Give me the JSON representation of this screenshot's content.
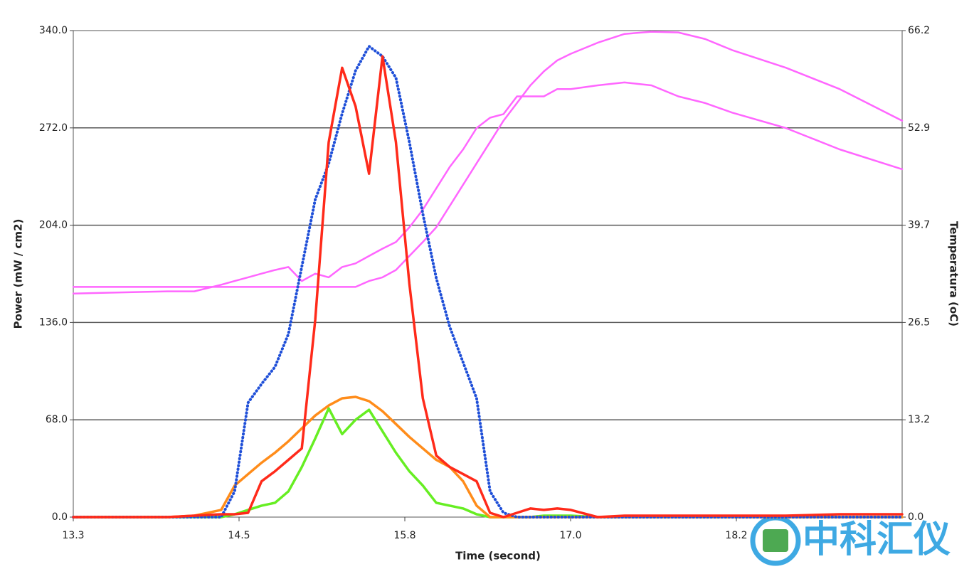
{
  "chart_data": {
    "type": "line",
    "xlabel": "Time (second)",
    "ylabel": "Power (mW / cm2)",
    "y2label": "Temperatura (oC)",
    "watermark": "中科汇仪",
    "x": [
      13.3,
      14.0,
      14.2,
      14.4,
      14.5,
      14.6,
      14.7,
      14.8,
      14.9,
      15.0,
      15.1,
      15.2,
      15.3,
      15.4,
      15.5,
      15.6,
      15.7,
      15.8,
      15.9,
      16.0,
      16.1,
      16.2,
      16.3,
      16.4,
      16.5,
      16.6,
      16.7,
      16.8,
      16.9,
      17.0,
      17.2,
      17.4,
      17.6,
      17.8,
      18.0,
      18.2,
      18.6,
      19.0,
      19.465
    ],
    "xlim": [
      13.3,
      19.465
    ],
    "xticks": [
      {
        "value": 13.3,
        "label": "13.3"
      },
      {
        "value": 14.533,
        "label": "14.5"
      },
      {
        "value": 15.766,
        "label": "15.8"
      },
      {
        "value": 16.999,
        "label": "17.0"
      },
      {
        "value": 18.232,
        "label": "18.2"
      }
    ],
    "ylim": [
      0,
      340
    ],
    "yticks": [
      {
        "value": 0,
        "label": "0.0"
      },
      {
        "value": 68,
        "label": "68.0"
      },
      {
        "value": 136,
        "label": "136.0"
      },
      {
        "value": 204,
        "label": "204.0"
      },
      {
        "value": 272,
        "label": "272.0"
      },
      {
        "value": 340,
        "label": "340.0"
      }
    ],
    "y2lim": [
      0,
      66.15
    ],
    "y2ticks": [
      {
        "value": 0,
        "label": "0.0"
      },
      {
        "value": 13.23,
        "label": "13.2"
      },
      {
        "value": 26.46,
        "label": "26.5"
      },
      {
        "value": 39.69,
        "label": "39.7"
      },
      {
        "value": 52.92,
        "label": "52.9"
      },
      {
        "value": 66.15,
        "label": "66.2"
      }
    ],
    "grid": true,
    "series": [
      {
        "color": "#ff66ff",
        "axis": "y2",
        "style": "pink",
        "values": [
          31.3,
          31.3,
          31.3,
          31.3,
          31.3,
          31.3,
          31.3,
          31.3,
          31.3,
          31.3,
          31.3,
          31.3,
          31.3,
          31.3,
          32.1,
          32.6,
          33.6,
          35.5,
          37.4,
          39.4,
          42.3,
          45.2,
          48.1,
          51.0,
          53.9,
          56.3,
          58.7,
          60.6,
          62.1,
          63.0,
          64.5,
          65.7,
          66.0,
          65.9,
          65.0,
          63.5,
          61.1,
          58.2,
          53.9
        ]
      },
      {
        "color": "#ff66ff",
        "axis": "y2",
        "style": "pink",
        "values": [
          30.4,
          30.7,
          30.7,
          31.6,
          32.1,
          32.6,
          33.1,
          33.6,
          34.0,
          32.1,
          33.1,
          32.6,
          34.0,
          34.5,
          35.5,
          36.5,
          37.4,
          39.4,
          41.8,
          44.7,
          47.6,
          50.0,
          52.9,
          54.3,
          54.8,
          57.2,
          57.2,
          57.2,
          58.2,
          58.2,
          58.7,
          59.1,
          58.7,
          57.2,
          56.3,
          55.0,
          52.9,
          50.0,
          47.3
        ]
      },
      {
        "color": "#66ee22",
        "style": "solid",
        "values": [
          0,
          0,
          0,
          0,
          2,
          5,
          8,
          10,
          18,
          35,
          55,
          76,
          58,
          68,
          75,
          60,
          45,
          32,
          22,
          10,
          8,
          6,
          2,
          0,
          0,
          0,
          0,
          1,
          1,
          1,
          0,
          0,
          0,
          0,
          0,
          0,
          0,
          0,
          0
        ]
      },
      {
        "color": "#ff8c1a",
        "style": "solid",
        "values": [
          0,
          0,
          1,
          5,
          22,
          30,
          38,
          45,
          53,
          62,
          71,
          78,
          83,
          84,
          81,
          74,
          65,
          56,
          48,
          40,
          35,
          25,
          8,
          0,
          0,
          0,
          0,
          0,
          0,
          0,
          0,
          0,
          0,
          0,
          0,
          0,
          0,
          0,
          0
        ]
      },
      {
        "color": "#1f4fd8",
        "style": "dotted",
        "values": [
          0,
          0,
          0,
          0,
          18,
          80,
          93,
          105,
          128,
          175,
          222,
          247,
          282,
          312,
          329,
          322,
          307,
          262,
          212,
          167,
          133,
          108,
          83,
          18,
          3,
          0,
          0,
          0,
          0,
          0,
          0,
          0,
          0,
          0,
          0,
          0,
          0,
          0,
          0
        ]
      },
      {
        "color": "#ff2a1a",
        "style": "solid",
        "values": [
          0,
          0,
          1,
          2,
          2,
          3,
          25,
          32,
          40,
          48,
          138,
          262,
          314,
          287,
          240,
          322,
          262,
          163,
          83,
          43,
          35,
          30,
          25,
          3,
          0,
          3,
          6,
          5,
          6,
          5,
          0,
          1,
          1,
          1,
          1,
          1,
          1,
          2,
          2
        ]
      }
    ]
  }
}
